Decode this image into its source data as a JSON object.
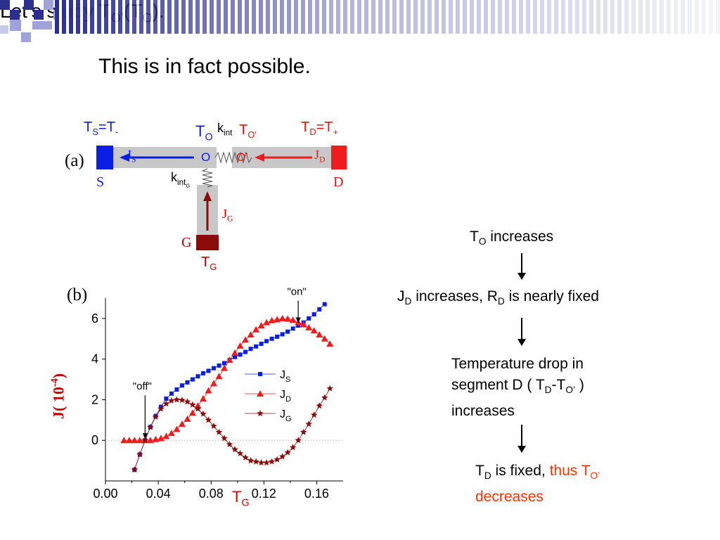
{
  "slide": {
    "title": "This is in fact possible.",
    "study": {
      "text": "Let’s study T",
      "sub1": "O’",
      "mid": "(T",
      "sub2": "O",
      "end": ")."
    }
  },
  "flowchart": {
    "step1": {
      "a": "T",
      "a_sub": "O",
      "b": " increases"
    },
    "step2": {
      "a": "J",
      "a_sub": "D",
      "b": " increases, R",
      "b_sub": "D",
      "c": " is nearly fixed"
    },
    "step3": {
      "line1": "Temperature drop in",
      "line2a": "segment D ( T",
      "line2_sub1": "D",
      "line2b": "-T",
      "line2_sub2": "O’",
      "line2c": " )",
      "line3": "increases"
    },
    "step4": {
      "a": "T",
      "a_sub": "D",
      "b": " is fixed, ",
      "c": "thus T",
      "c_sub": "O’",
      "d": "decreases"
    }
  },
  "diagram_a": {
    "panel": "(a)",
    "ts_label": "T",
    "ts_sub": "S",
    "ts_eq": "=T",
    "ts_sub2": "-",
    "to_label": "T",
    "to_sub": "O",
    "kint": "k",
    "kint_sub": "int",
    "tod_label": "T",
    "tod_sub": "O'",
    "td_label": "T",
    "td_sub": "D",
    "td_eq": "=T",
    "td_sub2": "+",
    "o": "O",
    "op": "O'",
    "js": "J",
    "js_sub": "S",
    "jd": "J",
    "jd_sub": "D",
    "jg": "J",
    "jg_sub": "G",
    "kintg": "k",
    "kintg_sub": "int",
    "kintg_sub2": "G",
    "s": "S",
    "d": "D",
    "g": "G",
    "tg_label": "T",
    "tg_sub": "G"
  },
  "colors": {
    "blue": "#0a1ee6",
    "red": "#ee1c1c",
    "darkred": "#8b0a0a",
    "gray": "#c8c8c8",
    "navy": "#2b2f8f",
    "lavender": "#9fa3d9"
  },
  "chart_data": {
    "type": "line",
    "panel": "(b)",
    "xlabel": "T",
    "xlabel_sub": "G",
    "ylabel": "J( 10",
    "ylabel_sup": "-4",
    "ylabel_end": ")",
    "xlim": [
      0.0,
      0.18
    ],
    "ylim": [
      -2.0,
      7.0
    ],
    "xticks": [
      "0.00",
      "0.04",
      "0.08",
      "0.12",
      "0.16"
    ],
    "yticks": [
      "0",
      "2",
      "4",
      "6"
    ],
    "annotations": [
      {
        "text": "\"off\"",
        "x": 0.03,
        "y": 0.0
      },
      {
        "text": "\"on\"",
        "x": 0.146,
        "y": 5.7
      }
    ],
    "series": [
      {
        "name": "J",
        "sub": "S",
        "color": "#0a1ee6",
        "marker": "square",
        "x": [
          0.022,
          0.026,
          0.03,
          0.034,
          0.038,
          0.042,
          0.046,
          0.05,
          0.054,
          0.058,
          0.062,
          0.066,
          0.07,
          0.074,
          0.078,
          0.082,
          0.086,
          0.09,
          0.094,
          0.098,
          0.102,
          0.106,
          0.11,
          0.114,
          0.118,
          0.122,
          0.126,
          0.13,
          0.134,
          0.138,
          0.142,
          0.146,
          0.15,
          0.154,
          0.158,
          0.162,
          0.166
        ],
        "y": [
          -1.45,
          -0.7,
          0.0,
          0.65,
          1.2,
          1.65,
          2.05,
          2.3,
          2.5,
          2.7,
          2.85,
          3.0,
          3.15,
          3.3,
          3.42,
          3.55,
          3.68,
          3.8,
          3.95,
          4.1,
          4.22,
          4.35,
          4.5,
          4.62,
          4.75,
          4.88,
          5.0,
          5.1,
          5.22,
          5.35,
          5.5,
          5.65,
          5.8,
          6.0,
          6.2,
          6.45,
          6.7
        ]
      },
      {
        "name": "J",
        "sub": "D",
        "color": "#ee1c1c",
        "marker": "triangle",
        "x": [
          0.014,
          0.018,
          0.022,
          0.026,
          0.03,
          0.034,
          0.038,
          0.042,
          0.046,
          0.05,
          0.054,
          0.058,
          0.062,
          0.066,
          0.07,
          0.074,
          0.078,
          0.082,
          0.086,
          0.09,
          0.094,
          0.098,
          0.102,
          0.106,
          0.11,
          0.114,
          0.118,
          0.122,
          0.126,
          0.13,
          0.134,
          0.138,
          0.142,
          0.146,
          0.15,
          0.154,
          0.158,
          0.162,
          0.166,
          0.17
        ],
        "y": [
          0.0,
          0.0,
          0.0,
          0.0,
          0.0,
          0.0,
          0.05,
          0.1,
          0.2,
          0.35,
          0.55,
          0.8,
          1.05,
          1.35,
          1.7,
          2.05,
          2.45,
          2.8,
          3.15,
          3.55,
          3.95,
          4.3,
          4.65,
          4.95,
          5.2,
          5.45,
          5.65,
          5.8,
          5.9,
          5.95,
          6.0,
          5.98,
          5.92,
          5.8,
          5.7,
          5.55,
          5.4,
          5.2,
          5.0,
          4.75
        ]
      },
      {
        "name": "J",
        "sub": "G",
        "color": "#8b0a0a",
        "marker": "star",
        "x": [
          0.022,
          0.026,
          0.03,
          0.034,
          0.038,
          0.042,
          0.046,
          0.05,
          0.054,
          0.058,
          0.062,
          0.066,
          0.07,
          0.074,
          0.078,
          0.082,
          0.086,
          0.09,
          0.094,
          0.098,
          0.102,
          0.106,
          0.11,
          0.114,
          0.118,
          0.122,
          0.126,
          0.13,
          0.134,
          0.138,
          0.142,
          0.146,
          0.15,
          0.154,
          0.158,
          0.162,
          0.166,
          0.17
        ],
        "y": [
          -1.45,
          -0.7,
          0.0,
          0.65,
          1.15,
          1.55,
          1.8,
          1.95,
          2.0,
          1.98,
          1.9,
          1.75,
          1.55,
          1.3,
          1.0,
          0.7,
          0.4,
          0.1,
          -0.2,
          -0.45,
          -0.65,
          -0.85,
          -1.0,
          -1.05,
          -1.1,
          -1.1,
          -1.05,
          -0.95,
          -0.8,
          -0.6,
          -0.35,
          0.0,
          0.4,
          0.8,
          1.25,
          1.7,
          2.1,
          2.55
        ]
      }
    ]
  }
}
